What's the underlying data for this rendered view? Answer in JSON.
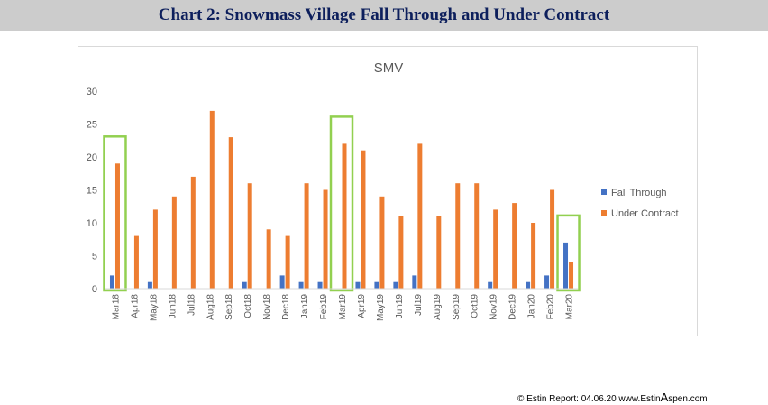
{
  "header": {
    "title": "Chart 2:  Snowmass Village Fall Through and Under Contract"
  },
  "colors": {
    "fall_through": "#4472c4",
    "under_contract": "#ed7d31",
    "highlight_box": "#92d050",
    "axis_text": "#595959",
    "grid": "#d9d9d9"
  },
  "chart_data": {
    "type": "bar",
    "title": "SMV",
    "categories": [
      "Mar18",
      "Apr18",
      "May18",
      "Jun18",
      "Jul18",
      "Aug18",
      "Sep18",
      "Oct18",
      "Nov18",
      "Dec18",
      "Jan19",
      "Feb19",
      "Mar19",
      "Apr19",
      "May19",
      "Jun19",
      "Jul19",
      "Aug19",
      "Sep19",
      "Oct19",
      "Nov19",
      "Dec19",
      "Jan20",
      "Feb20",
      "Mar20"
    ],
    "series": [
      {
        "name": "Fall Through",
        "color": "#4472c4",
        "values": [
          2,
          0,
          1,
          0,
          0,
          0,
          0,
          1,
          0,
          2,
          1,
          1,
          0,
          1,
          1,
          1,
          2,
          0,
          0,
          0,
          1,
          0,
          1,
          2,
          7
        ]
      },
      {
        "name": "Under Contract",
        "color": "#ed7d31",
        "values": [
          19,
          8,
          12,
          14,
          17,
          27,
          23,
          16,
          9,
          8,
          16,
          15,
          22,
          21,
          14,
          11,
          22,
          11,
          16,
          16,
          12,
          13,
          10,
          15,
          4
        ]
      }
    ],
    "ylim": [
      0,
      30
    ],
    "yticks": [
      0,
      5,
      10,
      15,
      20,
      25,
      30
    ],
    "grid": false,
    "legend_position": "right",
    "highlighted_categories": [
      "Mar18",
      "Mar19",
      "Mar20"
    ]
  },
  "footer": {
    "prefix": "© Estin Report: 04.06.20 www.Estin",
    "big_letter": "A",
    "suffix": "spen.com"
  }
}
